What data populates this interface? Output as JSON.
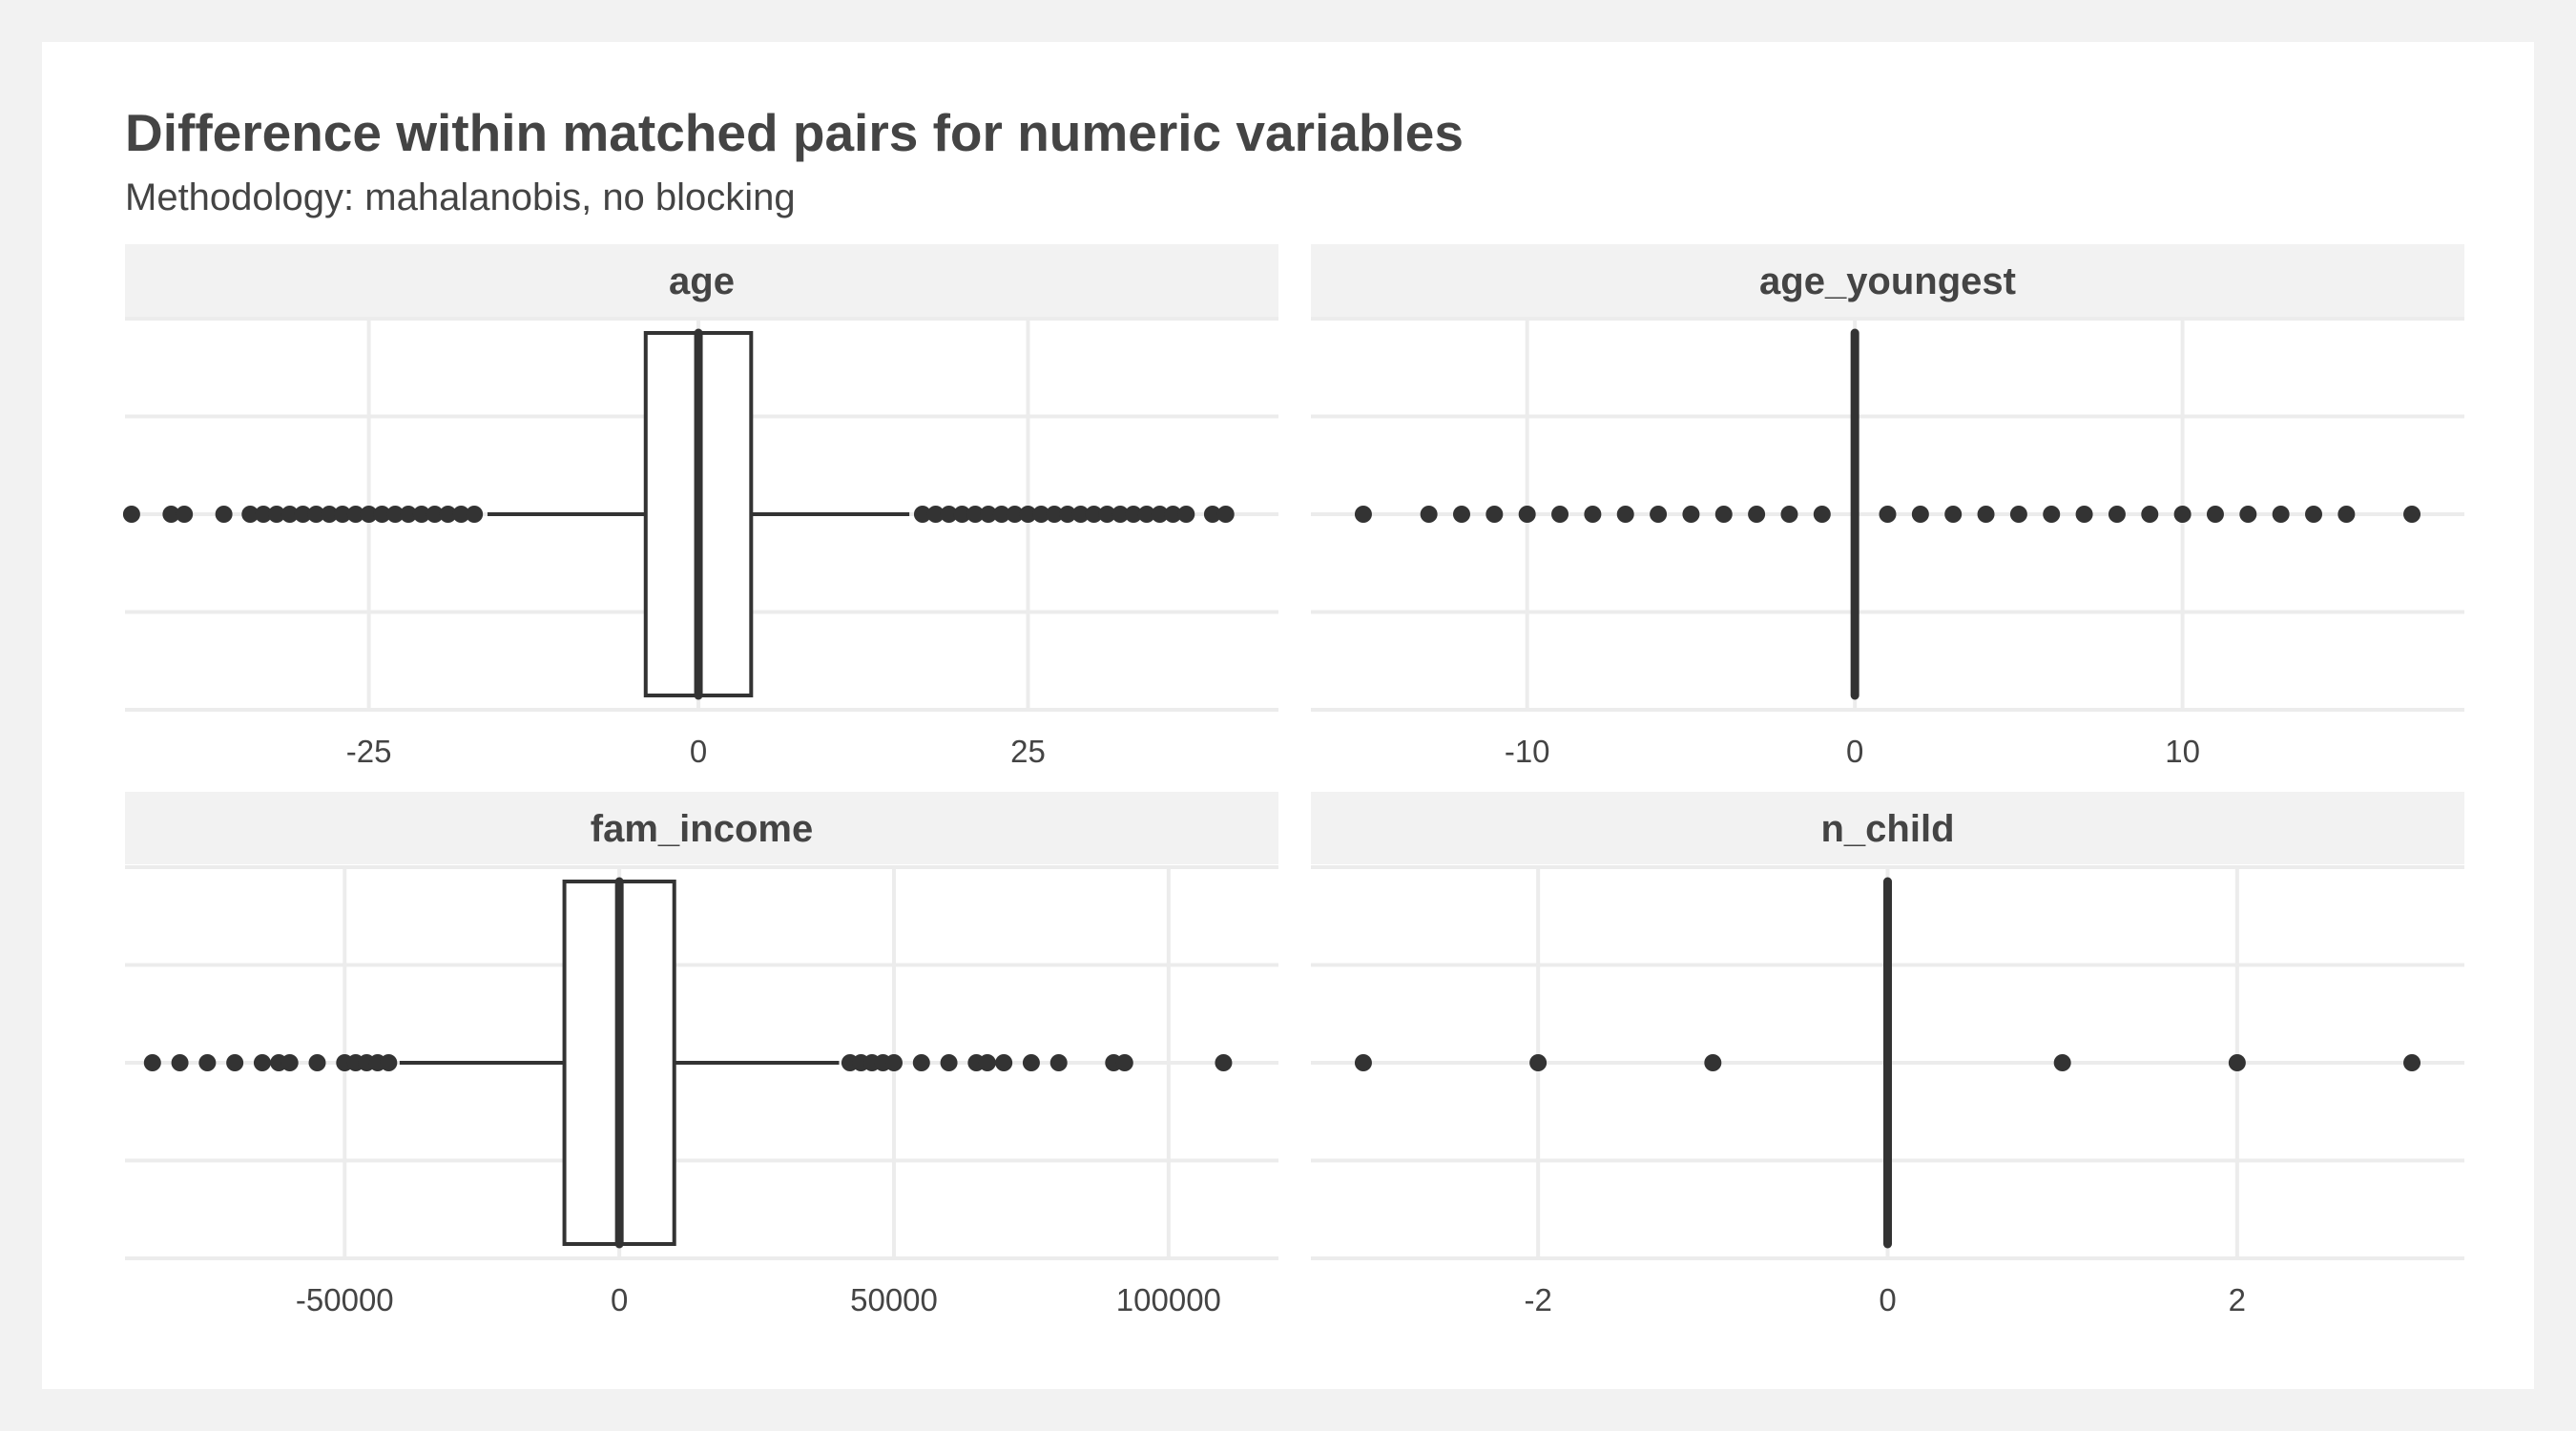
{
  "chart_data": {
    "type": "boxplot",
    "title": "Difference within matched pairs for numeric variables",
    "subtitle": "Methodology: mahalanobis, no blocking",
    "grid": true,
    "colors": {
      "background": "#f2f2f2",
      "panel": "#ffffff",
      "strip": "#f2f2f2",
      "grid": "#ececec",
      "ink": "#333333",
      "text": "#444444"
    },
    "panels": [
      {
        "name": "age",
        "xlim": [
          -43.5,
          44
        ],
        "ticks": [
          -25,
          0,
          25
        ],
        "tick_labels": [
          "-25",
          "0",
          "25"
        ],
        "box": {
          "q1": -4,
          "median": 0,
          "q3": 4,
          "whisker_low": -16,
          "whisker_high": 16
        },
        "outliers": [
          -43,
          -40,
          -39,
          -36,
          -34,
          -33,
          -32,
          -31,
          -30,
          -29,
          -28,
          -27,
          -26,
          -25,
          -24,
          -23,
          -22,
          -21,
          -20,
          -19,
          -18,
          -17,
          17,
          18,
          19,
          20,
          21,
          22,
          23,
          24,
          25,
          26,
          27,
          28,
          29,
          30,
          31,
          32,
          33,
          34,
          35,
          36,
          37,
          39,
          40
        ]
      },
      {
        "name": "age_youngest",
        "xlim": [
          -16.6,
          18.6
        ],
        "ticks": [
          -10,
          0,
          10
        ],
        "tick_labels": [
          "-10",
          "0",
          "10"
        ],
        "box": {
          "q1": 0,
          "median": 0,
          "q3": 0,
          "whisker_low": 0,
          "whisker_high": 0
        },
        "outliers": [
          -15,
          -13,
          -12,
          -11,
          -10,
          -9,
          -8,
          -7,
          -6,
          -5,
          -4,
          -3,
          -2,
          -1,
          1,
          2,
          3,
          4,
          5,
          6,
          7,
          8,
          9,
          10,
          11,
          12,
          13,
          14,
          15,
          17
        ]
      },
      {
        "name": "fam_income",
        "xlim": [
          -90000,
          120000
        ],
        "ticks": [
          -50000,
          0,
          50000,
          100000
        ],
        "tick_labels": [
          "-50000",
          "0",
          "50000",
          "100000"
        ],
        "box": {
          "q1": -10000,
          "median": 0,
          "q3": 10000,
          "whisker_low": -40000,
          "whisker_high": 40000
        },
        "outliers": [
          -85000,
          -80000,
          -75000,
          -70000,
          -65000,
          -62000,
          -60000,
          -55000,
          -50000,
          -48000,
          -46000,
          -44000,
          -42000,
          42000,
          44000,
          46000,
          48000,
          50000,
          55000,
          60000,
          65000,
          67000,
          70000,
          75000,
          80000,
          90000,
          92000,
          110000
        ]
      },
      {
        "name": "n_child",
        "xlim": [
          -3.3,
          3.3
        ],
        "ticks": [
          -2,
          0,
          2
        ],
        "tick_labels": [
          "-2",
          "0",
          "2"
        ],
        "box": {
          "q1": 0,
          "median": 0,
          "q3": 0,
          "whisker_low": 0,
          "whisker_high": 0
        },
        "outliers": [
          -3,
          -2,
          -1,
          1,
          2,
          3
        ]
      }
    ]
  }
}
